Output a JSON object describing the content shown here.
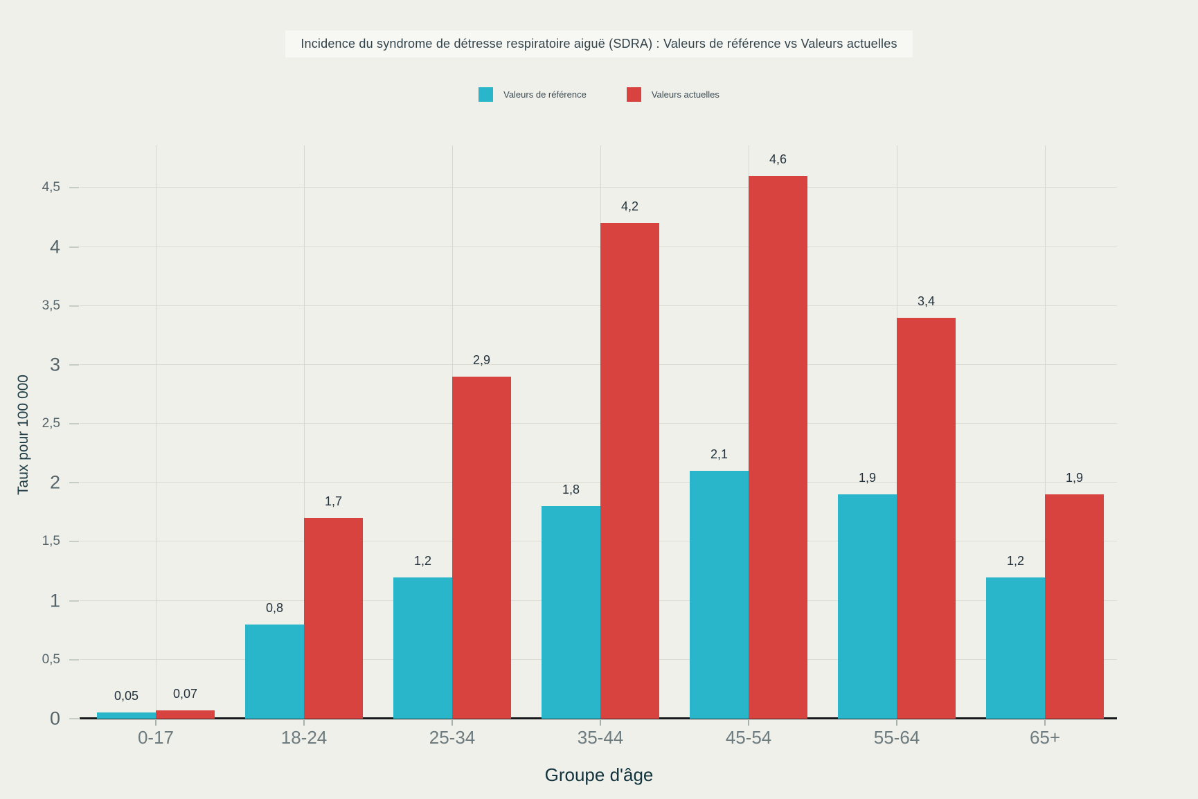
{
  "title": "Incidence du syndrome de détresse respiratoire aiguë (SDRA) : Valeurs de référence vs Valeurs actuelles",
  "colors": {
    "background": "#f0f0ea",
    "grid": "#dcdcd3",
    "axis": "#17191b",
    "reference_teal": "#29b6ca",
    "actual_red": "#d8433f"
  },
  "legend": {
    "position": "top-center",
    "items": [
      {
        "label": "Valeurs de référence",
        "color": "#29b6ca"
      },
      {
        "label": "Valeurs actuelles",
        "color": "#d8433f"
      }
    ]
  },
  "chart_data": {
    "type": "bar",
    "title": "Incidence du syndrome de détresse respiratoire aiguë (SDRA) : Valeurs de référence vs Valeurs actuelles",
    "categories": [
      "0-17",
      "18-24",
      "25-34",
      "35-44",
      "45-54",
      "55-64",
      "65+"
    ],
    "series": [
      {
        "name": "Valeurs de référence",
        "color": "#29b6ca",
        "values": [
          0.05,
          0.8,
          1.2,
          1.8,
          2.1,
          1.9,
          1.2
        ],
        "labels": [
          "0,05",
          "0,8",
          "1,2",
          "1,8",
          "2,1",
          "1,9",
          "1,2"
        ]
      },
      {
        "name": "Valeurs actuelles",
        "color": "#d8433f",
        "values": [
          0.07,
          1.7,
          2.9,
          4.2,
          4.6,
          3.4,
          1.9
        ],
        "labels": [
          "0,07",
          "1,7",
          "2,9",
          "4,2",
          "4,6",
          "3,4",
          "1,9"
        ]
      }
    ],
    "xlabel": "Groupe d'âge",
    "ylabel": "Taux pour 100 000",
    "ylim": [
      0,
      4.86
    ],
    "yticks": [
      {
        "v": 0,
        "label": "0",
        "major": true
      },
      {
        "v": 0.5,
        "label": "0,5",
        "major": false
      },
      {
        "v": 1,
        "label": "1",
        "major": true
      },
      {
        "v": 1.5,
        "label": "1,5",
        "major": false
      },
      {
        "v": 2,
        "label": "2",
        "major": true
      },
      {
        "v": 2.5,
        "label": "2,5",
        "major": false
      },
      {
        "v": 3,
        "label": "3",
        "major": true
      },
      {
        "v": 3.5,
        "label": "3,5",
        "major": false
      },
      {
        "v": 4,
        "label": "4",
        "major": true
      },
      {
        "v": 4.5,
        "label": "4,5",
        "major": false
      }
    ],
    "grid": {
      "horizontal": true,
      "vertical_at_category_centers": true
    },
    "legend_position": "top-center"
  }
}
